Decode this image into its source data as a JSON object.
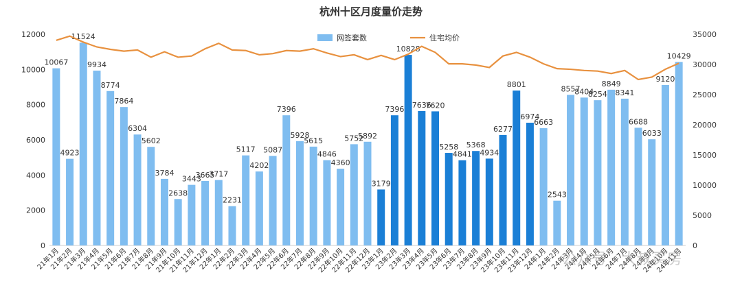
{
  "chart_data": {
    "type": "bar-line",
    "title": "杭州十区月度量价走势",
    "categories": [
      "21年1月",
      "21年2月",
      "21年3月",
      "21年4月",
      "21年5月",
      "21年6月",
      "21年7月",
      "21年8月",
      "21年9月",
      "21年10月",
      "21年11月",
      "21年12月",
      "22年1月",
      "22年2月",
      "22年3月",
      "22年4月",
      "22年5月",
      "22年6月",
      "22年7月",
      "22年8月",
      "22年9月",
      "22年10月",
      "22年11月",
      "22年12月",
      "23年1月",
      "23年2月",
      "23年3月",
      "23年4月",
      "23年5月",
      "23年6月",
      "23年7月",
      "23年8月",
      "23年9月",
      "23年10月",
      "23年11月",
      "23年12月",
      "24年1月",
      "24年2月",
      "24年3月",
      "24年4月",
      "24年5月",
      "24年6月",
      "24年7月",
      "24年8月",
      "24年9月",
      "24年10月",
      "24年11月"
    ],
    "series": [
      {
        "name": "网签套数",
        "type": "bar",
        "color": "#7fbdf0",
        "colors": [
          "#7fbdf0",
          "#7fbdf0",
          "#7fbdf0",
          "#7fbdf0",
          "#7fbdf0",
          "#7fbdf0",
          "#7fbdf0",
          "#7fbdf0",
          "#7fbdf0",
          "#7fbdf0",
          "#7fbdf0",
          "#7fbdf0",
          "#7fbdf0",
          "#7fbdf0",
          "#7fbdf0",
          "#7fbdf0",
          "#7fbdf0",
          "#7fbdf0",
          "#7fbdf0",
          "#7fbdf0",
          "#7fbdf0",
          "#7fbdf0",
          "#7fbdf0",
          "#7fbdf0",
          "#1a7fd6",
          "#1a7fd6",
          "#1a7fd6",
          "#1a7fd6",
          "#1a7fd6",
          "#1a7fd6",
          "#1a7fd6",
          "#1a7fd6",
          "#1a7fd6",
          "#1a7fd6",
          "#1a7fd6",
          "#1a7fd6",
          "#7fbdf0",
          "#7fbdf0",
          "#7fbdf0",
          "#7fbdf0",
          "#7fbdf0",
          "#7fbdf0",
          "#7fbdf0",
          "#7fbdf0",
          "#7fbdf0",
          "#7fbdf0",
          "#7fbdf0"
        ],
        "values": [
          10067,
          4923,
          11524,
          9934,
          8774,
          7864,
          6304,
          5602,
          3784,
          2638,
          3443,
          3665,
          3717,
          2231,
          5117,
          4202,
          5087,
          7396,
          5928,
          5615,
          4846,
          4360,
          5752,
          5892,
          3179,
          7396,
          10828,
          7636,
          7620,
          5258,
          4841,
          5368,
          4934,
          6277,
          8801,
          6974,
          6663,
          2543,
          8557,
          8404,
          8254,
          8849,
          8341,
          6688,
          6033,
          9120,
          10429
        ]
      },
      {
        "name": "住宅均价",
        "type": "line",
        "axis": "y2",
        "color": "#e8913f",
        "values": [
          34000,
          34700,
          33700,
          32900,
          32500,
          32200,
          32400,
          31200,
          32100,
          31200,
          31400,
          32600,
          33500,
          32400,
          32300,
          31600,
          31800,
          32300,
          32200,
          32600,
          31900,
          31300,
          31600,
          30800,
          31500,
          30800,
          31700,
          33000,
          32000,
          30100,
          30100,
          29900,
          29500,
          31400,
          32000,
          31200,
          30100,
          29300,
          29200,
          29000,
          28900,
          28500,
          29000,
          27500,
          27900,
          29200,
          30200
        ]
      }
    ],
    "ylim": [
      0,
      12000
    ],
    "yticks": [
      0,
      2000,
      4000,
      6000,
      8000,
      10000,
      12000
    ],
    "y2lim": [
      0,
      35000
    ],
    "y2ticks": [
      0,
      5000,
      10000,
      15000,
      20000,
      25000,
      30000,
      35000
    ],
    "watermark": "公众号 · 大叔买房"
  }
}
